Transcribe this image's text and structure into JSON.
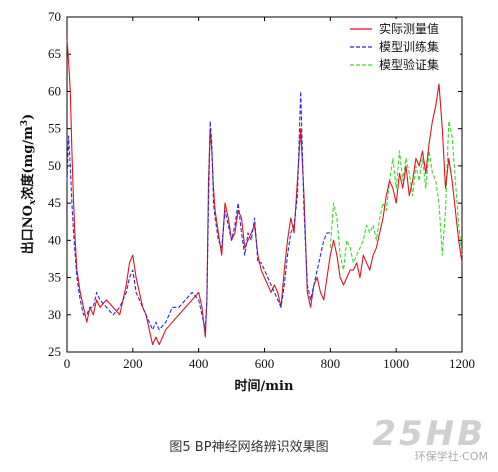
{
  "caption": "图5 BP神经网络辨识效果图",
  "watermark": {
    "logo": "25HB",
    "text": "环保学社·COM"
  },
  "chart_data": {
    "type": "line",
    "xlabel": "时间/min",
    "ylabel_parts": [
      "出口NO",
      "x",
      "浓度(mg/m",
      "3",
      ")"
    ],
    "xlim": [
      0,
      1200
    ],
    "ylim": [
      25,
      70
    ],
    "xticks": [
      0,
      200,
      400,
      600,
      800,
      1000,
      1200
    ],
    "yticks": [
      25,
      30,
      35,
      40,
      45,
      50,
      55,
      60,
      65,
      70
    ],
    "legend_position": "top-right",
    "series": [
      {
        "name": "实际测量值",
        "color": "#e0141e",
        "style": "solid",
        "x": [
          0,
          5,
          10,
          15,
          20,
          25,
          30,
          40,
          50,
          60,
          70,
          80,
          90,
          100,
          120,
          140,
          160,
          180,
          190,
          200,
          210,
          220,
          230,
          240,
          250,
          260,
          270,
          280,
          300,
          320,
          340,
          360,
          380,
          400,
          410,
          420,
          425,
          430,
          435,
          440,
          445,
          450,
          460,
          470,
          480,
          490,
          500,
          510,
          520,
          530,
          540,
          550,
          560,
          570,
          580,
          590,
          600,
          610,
          620,
          630,
          640,
          650,
          660,
          670,
          680,
          690,
          700,
          710,
          720,
          730,
          740,
          750,
          760,
          770,
          780,
          790,
          800,
          810,
          820,
          830,
          840,
          850,
          860,
          870,
          880,
          890,
          900,
          910,
          920,
          930,
          940,
          950,
          960,
          970,
          980,
          990,
          1000,
          1010,
          1020,
          1030,
          1040,
          1050,
          1060,
          1070,
          1080,
          1090,
          1100,
          1110,
          1120,
          1130,
          1140,
          1150,
          1160,
          1170,
          1180,
          1190,
          1200
        ],
        "y": [
          67,
          64,
          60,
          52,
          45,
          40,
          36,
          33,
          31,
          29,
          31,
          30,
          32,
          31,
          32,
          31,
          30,
          34,
          37,
          38,
          35,
          33,
          31,
          30,
          28,
          26,
          27,
          26,
          28,
          29,
          30,
          31,
          32,
          33,
          31,
          27,
          32,
          48,
          55,
          52,
          47,
          44,
          41,
          38,
          45,
          43,
          40,
          41,
          44,
          43,
          39,
          40,
          41,
          42,
          38,
          36,
          35,
          34,
          33,
          34,
          33,
          31,
          36,
          40,
          43,
          41,
          48,
          55,
          46,
          33,
          31,
          34,
          35,
          33,
          32,
          35,
          38,
          40,
          38,
          35,
          34,
          35,
          36,
          36,
          37,
          35,
          38,
          37,
          36,
          38,
          39,
          41,
          43,
          46,
          48,
          47,
          45,
          49,
          47,
          50,
          46,
          48,
          51,
          50,
          52,
          49,
          53,
          56,
          58,
          61,
          55,
          47,
          51,
          48,
          44,
          40,
          37
        ]
      },
      {
        "name": "模型训练集",
        "color": "#2b2bd6",
        "style": "dashed",
        "x": [
          0,
          5,
          10,
          15,
          20,
          25,
          30,
          40,
          50,
          60,
          70,
          80,
          90,
          100,
          120,
          140,
          160,
          180,
          190,
          200,
          210,
          220,
          230,
          240,
          250,
          260,
          270,
          280,
          300,
          320,
          340,
          360,
          380,
          400,
          410,
          420,
          425,
          430,
          435,
          440,
          445,
          450,
          460,
          470,
          480,
          490,
          500,
          510,
          520,
          530,
          540,
          550,
          560,
          570,
          580,
          590,
          600,
          610,
          620,
          630,
          640,
          650,
          660,
          670,
          680,
          690,
          700,
          710,
          720,
          730,
          740,
          750,
          760,
          770,
          780,
          790,
          800
        ],
        "y": [
          48,
          54,
          50,
          45,
          41,
          38,
          35,
          32,
          30,
          30,
          31,
          31,
          33,
          32,
          31,
          30,
          31,
          33,
          35,
          36,
          33,
          32,
          31,
          30,
          29,
          28,
          29,
          28,
          29,
          31,
          31,
          32,
          33,
          32,
          30,
          28,
          32,
          45,
          56,
          53,
          45,
          43,
          40,
          39,
          44,
          42,
          40,
          42,
          45,
          41,
          38,
          41,
          40,
          43,
          37,
          37,
          36,
          35,
          34,
          33,
          32,
          31,
          34,
          38,
          41,
          42,
          46,
          60,
          44,
          34,
          32,
          34,
          36,
          38,
          40,
          41,
          41
        ]
      },
      {
        "name": "模型验证集",
        "color": "#3fd82e",
        "style": "dashed",
        "x": [
          800,
          810,
          820,
          830,
          840,
          850,
          860,
          870,
          880,
          890,
          900,
          910,
          920,
          930,
          940,
          950,
          960,
          970,
          980,
          990,
          1000,
          1010,
          1020,
          1030,
          1040,
          1050,
          1060,
          1070,
          1080,
          1090,
          1100,
          1110,
          1120,
          1130,
          1140,
          1150,
          1160,
          1170,
          1180,
          1190,
          1200
        ],
        "y": [
          39,
          45,
          43,
          38,
          36,
          40,
          39,
          37,
          38,
          39,
          40,
          42,
          41,
          42,
          40,
          43,
          45,
          44,
          48,
          51,
          47,
          52,
          48,
          51,
          49,
          46,
          50,
          48,
          51,
          47,
          52,
          49,
          48,
          45,
          38,
          44,
          56,
          54,
          48,
          42,
          38
        ]
      }
    ]
  }
}
